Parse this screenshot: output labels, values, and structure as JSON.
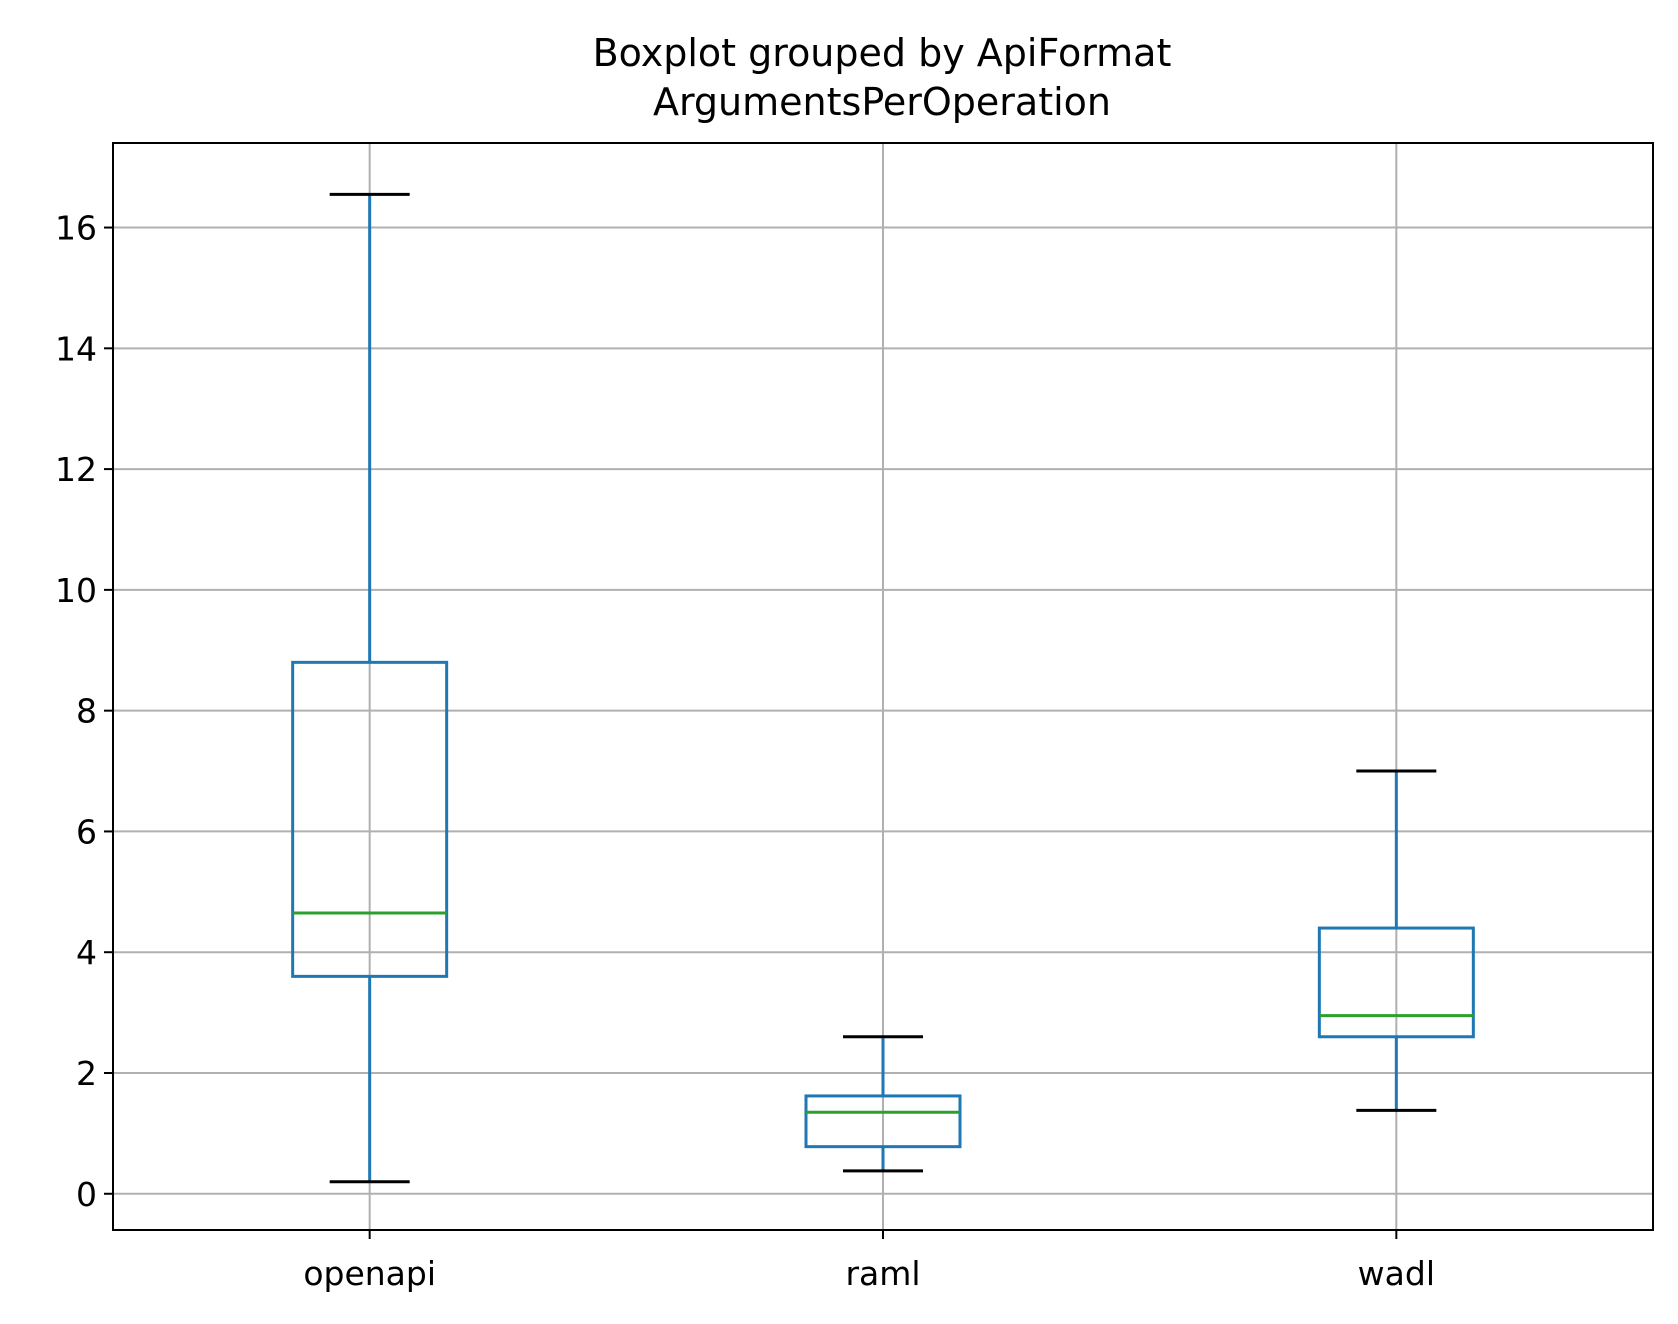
{
  "chart_data": {
    "type": "boxplot",
    "title_line1": "Boxplot grouped by ApiFormat",
    "title_line2": "ArgumentsPerOperation",
    "xlabel": "",
    "ylabel": "",
    "ylim": [
      -0.6,
      17.4
    ],
    "yticks": [
      0,
      2,
      4,
      6,
      8,
      10,
      12,
      14,
      16
    ],
    "ytick_labels": [
      "0",
      "2",
      "4",
      "6",
      "8",
      "10",
      "12",
      "14",
      "16"
    ],
    "grid": true,
    "categories": [
      "openapi",
      "raml",
      "wadl"
    ],
    "boxes": [
      {
        "name": "openapi",
        "whisker_low": 0.2,
        "q1": 3.6,
        "median": 4.65,
        "q3": 8.8,
        "whisker_high": 16.55
      },
      {
        "name": "raml",
        "whisker_low": 0.38,
        "q1": 0.78,
        "median": 1.35,
        "q3": 1.62,
        "whisker_high": 2.6
      },
      {
        "name": "wadl",
        "whisker_low": 1.38,
        "q1": 2.6,
        "median": 2.95,
        "q3": 4.4,
        "whisker_high": 7.0
      }
    ],
    "colors": {
      "box": "#1f77b4",
      "median": "#2ca02c",
      "cap": "#000000",
      "grid": "#b0b0b0",
      "frame": "#000000"
    }
  }
}
